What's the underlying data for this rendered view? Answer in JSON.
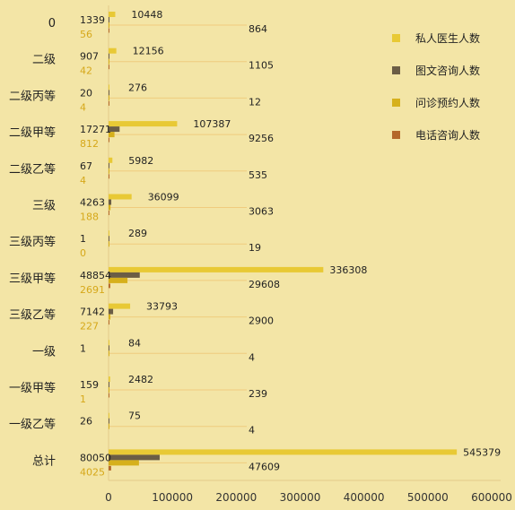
{
  "chart_data": {
    "type": "bar",
    "orientation": "horizontal",
    "categories": [
      "0",
      "二级",
      "二级丙等",
      "二级甲等",
      "二级乙等",
      "三级",
      "三级丙等",
      "三级甲等",
      "三级乙等",
      "一级",
      "一级甲等",
      "一级乙等",
      "总计"
    ],
    "series": [
      {
        "name": "私人医生人数",
        "color": "#e8c935",
        "values": [
          10448,
          12156,
          276,
          107387,
          5982,
          36099,
          289,
          336308,
          33793,
          84,
          2482,
          75,
          545379
        ]
      },
      {
        "name": "图文咨询人数",
        "color": "#6b5d45",
        "values": [
          1339,
          907,
          20,
          17271,
          67,
          4263,
          1,
          48854,
          7142,
          1,
          159,
          26,
          80050
        ]
      },
      {
        "name": "问诊预约人数",
        "color": "#d6b01c",
        "values": [
          864,
          1105,
          12,
          9256,
          535,
          3063,
          19,
          29608,
          2900,
          4,
          239,
          4,
          47609
        ]
      },
      {
        "name": "电话咨询人数",
        "color": "#b4682a",
        "values": [
          56,
          42,
          4,
          812,
          4,
          188,
          0,
          2691,
          227,
          null,
          1,
          null,
          4025
        ]
      }
    ],
    "xlim": [
      0,
      600000
    ],
    "xticks": [
      0,
      100000,
      200000,
      300000,
      400000,
      500000,
      600000
    ],
    "legend_position": "top-right",
    "grid": false
  }
}
